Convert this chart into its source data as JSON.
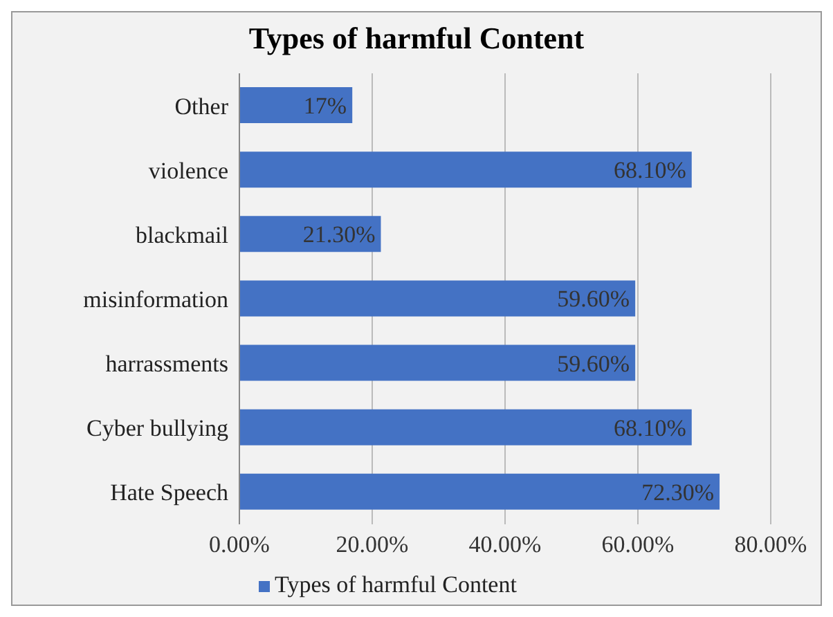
{
  "chart_data": {
    "type": "bar",
    "orientation": "horizontal",
    "title": "Types of harmful Content",
    "categories": [
      "Other",
      "violence",
      "blackmail",
      "misinformation",
      "harrassments",
      "Cyber bullying",
      "Hate Speech"
    ],
    "series": [
      {
        "name": "Types of harmful Content",
        "color": "#4472c4",
        "values": [
          17,
          68.1,
          21.3,
          59.6,
          59.6,
          68.1,
          72.3
        ],
        "value_labels": [
          "17%",
          "68.10%",
          "21.30%",
          "59.60%",
          "59.60%",
          "68.10%",
          "72.30%"
        ]
      }
    ],
    "xlim": [
      0,
      80
    ],
    "xticks": [
      {
        "value": 0,
        "label": "0.00%"
      },
      {
        "value": 20,
        "label": "20.00%"
      },
      {
        "value": 40,
        "label": "40.00%"
      },
      {
        "value": 60,
        "label": "60.00%"
      },
      {
        "value": 80,
        "label": "80.00%"
      }
    ],
    "grid": "x",
    "legend": "bottom"
  }
}
